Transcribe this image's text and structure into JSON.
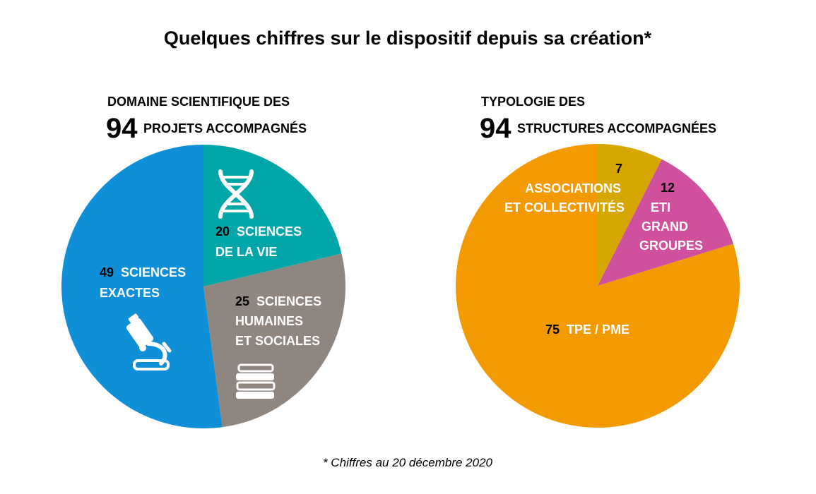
{
  "title": "Quelques chiffres sur le dispositif depuis sa création*",
  "footnote": "* Chiffres au 20 décembre 2020",
  "colors": {
    "sciences_exactes": "#0e8fd7",
    "sciences_vie": "#00a6a8",
    "sciences_humaines": "#908680",
    "tpe_pme": "#f39a00",
    "associations": "#d5a700",
    "eti": "#d0509e",
    "label_text": "#ffffff",
    "number_text": "#000000"
  },
  "chart_data": [
    {
      "type": "pie",
      "heading_line1": "DOMAINE SCIENTIFIQUE DES",
      "heading_number": "94",
      "heading_line2": "PROJETS ACCOMPAGNÉS",
      "total": 94,
      "slices": [
        {
          "value": 20,
          "number": "20",
          "label_lines": [
            "SCIENCES",
            "DE LA VIE"
          ],
          "color": "#00a6a8",
          "icon": "dna-icon"
        },
        {
          "value": 25,
          "number": "25",
          "label_lines": [
            "SCIENCES",
            "HUMAINES",
            "ET SOCIALES"
          ],
          "color": "#908680",
          "icon": "books-icon"
        },
        {
          "value": 49,
          "number": "49",
          "label_lines": [
            "SCIENCES",
            "EXACTES"
          ],
          "color": "#0e8fd7",
          "icon": "microscope-icon"
        }
      ]
    },
    {
      "type": "pie",
      "heading_line1": "TYPOLOGIE DES",
      "heading_number": "94",
      "heading_line2": "STRUCTURES ACCOMPAGNÉES",
      "total": 94,
      "slices": [
        {
          "value": 7,
          "number": "7",
          "label_lines": [
            "ASSOCIATIONS",
            "ET COLLECTIVITÉS"
          ],
          "color": "#d5a700"
        },
        {
          "value": 12,
          "number": "12",
          "label_lines": [
            "ETI",
            "GRAND",
            "GROUPES"
          ],
          "color": "#d0509e"
        },
        {
          "value": 75,
          "number": "75",
          "label_lines": [
            "TPE / PME"
          ],
          "color": "#f39a00"
        }
      ]
    }
  ]
}
